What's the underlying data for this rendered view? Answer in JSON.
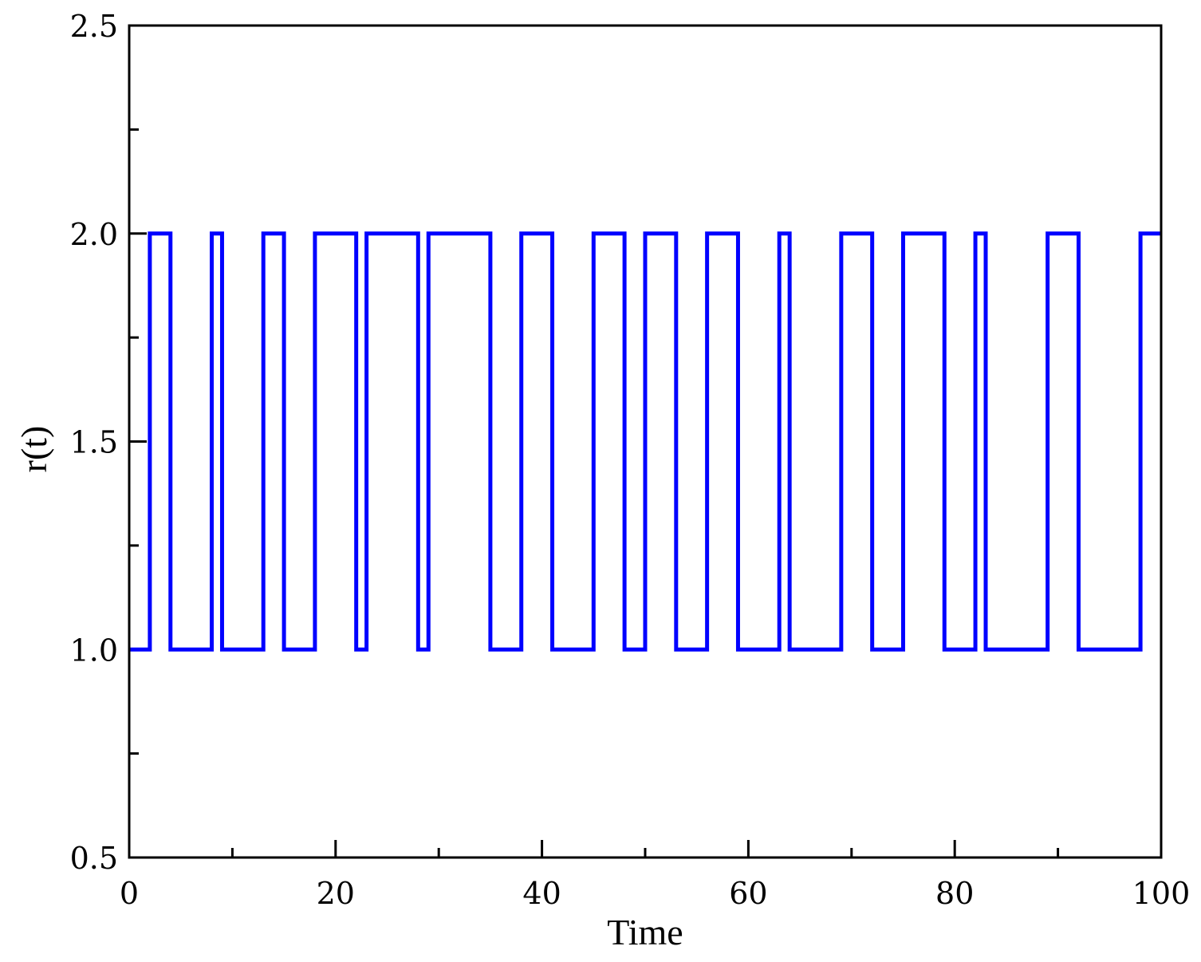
{
  "chart_data": {
    "type": "line",
    "title": "",
    "xlabel": "Time",
    "ylabel": "r(t)",
    "xlim": [
      0,
      100
    ],
    "ylim": [
      0.5,
      2.5
    ],
    "x_ticks": [
      0,
      20,
      40,
      60,
      80,
      100
    ],
    "x_tick_labels": [
      "0",
      "20",
      "40",
      "60",
      "80",
      "100"
    ],
    "x_minor_ticks": [
      10,
      30,
      50,
      70,
      90
    ],
    "y_ticks": [
      0.5,
      1.0,
      1.5,
      2.0,
      2.5
    ],
    "y_tick_labels": [
      "0.5",
      "1.0",
      "1.5",
      "2.0",
      "2.5"
    ],
    "y_minor_ticks": [
      0.75,
      1.25,
      1.75,
      2.25
    ],
    "grid": false,
    "legend": "none",
    "line_style": "step",
    "series": [
      {
        "color": "#0000ff",
        "x": [
          0,
          2,
          4,
          8,
          9,
          13,
          15,
          18,
          22,
          23,
          28,
          29,
          35,
          38,
          41,
          45,
          48,
          50,
          53,
          56,
          59,
          63,
          64,
          69,
          72,
          75,
          79,
          82,
          83,
          89,
          92,
          98,
          100
        ],
        "y": [
          1,
          2,
          1,
          2,
          1,
          2,
          1,
          2,
          1,
          2,
          1,
          2,
          1,
          2,
          1,
          2,
          1,
          2,
          1,
          2,
          1,
          2,
          1,
          2,
          1,
          2,
          1,
          2,
          1,
          2,
          1,
          2,
          1
        ]
      }
    ]
  }
}
